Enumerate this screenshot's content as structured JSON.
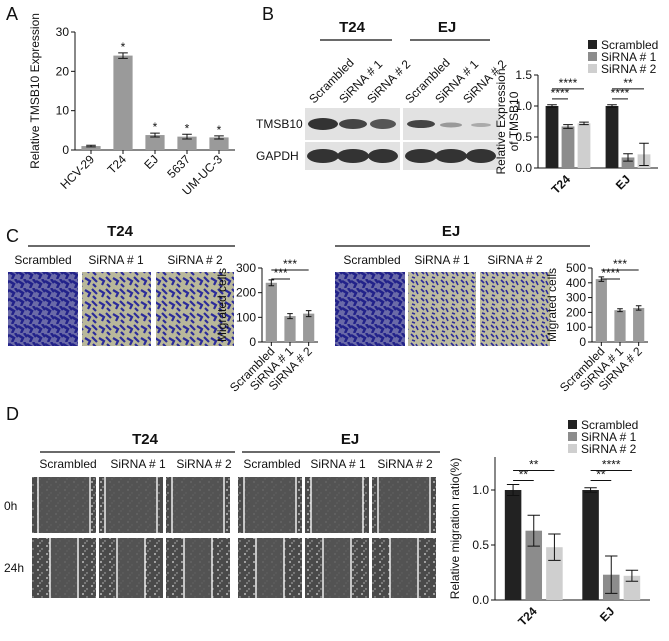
{
  "panels": {
    "labels": [
      "A",
      "B",
      "C",
      "D"
    ],
    "blot": {
      "groups": [
        "T24",
        "EJ"
      ],
      "lanes": [
        "Scrambled",
        "SiRNA # 1",
        "SiRNA # 2",
        "Scrambled",
        "SiRNA # 1",
        "SiRNA # 2"
      ],
      "rows": [
        "TMSB10",
        "GAPDH"
      ]
    },
    "transwell": {
      "groups": [
        "T24",
        "EJ"
      ],
      "lanes": [
        "Scrambled",
        "SiRNA # 1",
        "SiRNA # 2",
        "Scrambled",
        "SiRNA # 1",
        "SiRNA # 2"
      ]
    },
    "wound": {
      "groups": [
        "T24",
        "EJ"
      ],
      "lanes": [
        "Scrambled",
        "SiRNA # 1",
        "SiRNA # 2",
        "Scrambled",
        "SiRNA # 1",
        "SiRNA # 2"
      ],
      "times": [
        "0h",
        "24h"
      ]
    }
  },
  "chart_data": [
    {
      "type": "bar",
      "y_label": "Relative TMSB10 Expression",
      "categories": [
        "HCV-29",
        "T24",
        "EJ",
        "5637",
        "UM-UC-3"
      ],
      "values": [
        1,
        24,
        3.8,
        3.4,
        3.2
      ],
      "errors": [
        0.2,
        0.7,
        0.5,
        0.6,
        0.4
      ],
      "color": "#9a9a9a",
      "annotations": [
        "*",
        "*",
        "*",
        "*"
      ],
      "ylim": [
        0,
        30
      ],
      "yticks": [
        0,
        10,
        20,
        30
      ]
    },
    {
      "type": "grouped_bar",
      "y_label": "Relative Expression of TMSB10",
      "categories": [
        "T24",
        "EJ"
      ],
      "series": [
        {
          "name": "Scrambled",
          "color": "#222222",
          "values": [
            1.0,
            1.0
          ],
          "errors": [
            0.02,
            0.02
          ]
        },
        {
          "name": "SiRNA # 1",
          "color": "#8c8c8c",
          "values": [
            0.67,
            0.17
          ],
          "errors": [
            0.03,
            0.06
          ]
        },
        {
          "name": "SiRNA # 2",
          "color": "#cfcfcf",
          "values": [
            0.72,
            0.22
          ],
          "errors": [
            0.02,
            0.18
          ]
        }
      ],
      "significance": [
        "****",
        "****",
        "****",
        "**"
      ],
      "legend": "top-right",
      "ylim": [
        0,
        1.5
      ],
      "yticks": [
        {
          "value": 0,
          "label": "0.0"
        },
        0.5,
        {
          "value": 1,
          "label": "1.0"
        },
        1.5
      ]
    },
    {
      "type": "bar",
      "y_label": "Migrated cells",
      "categories": [
        "Scrambled",
        "SiRNA # 1",
        "SiRNA # 2"
      ],
      "values": [
        240,
        105,
        115
      ],
      "errors": [
        12,
        10,
        12
      ],
      "color": "#9a9a9a",
      "significance": [
        "***",
        "***"
      ],
      "ylim": [
        0,
        300
      ],
      "yticks": [
        0,
        100,
        200,
        300
      ]
    },
    {
      "type": "bar",
      "y_label": "Migrated cells",
      "categories": [
        "Scrambled",
        "SiRNA # 1",
        "SiRNA # 2"
      ],
      "values": [
        425,
        215,
        230
      ],
      "errors": [
        15,
        10,
        15
      ],
      "color": "#9a9a9a",
      "significance": [
        "****",
        "***"
      ],
      "ylim": [
        0,
        500
      ],
      "yticks": [
        0,
        100,
        200,
        300,
        400,
        500
      ]
    },
    {
      "type": "grouped_bar",
      "y_label": "Relative migration ratio(%)",
      "categories": [
        "T24",
        "EJ"
      ],
      "series": [
        {
          "name": "Scrambled",
          "color": "#222222",
          "values": [
            1.0,
            1.0
          ],
          "errors": [
            0.05,
            0.02
          ]
        },
        {
          "name": "SiRNA # 1",
          "color": "#8c8c8c",
          "values": [
            0.63,
            0.23
          ],
          "errors": [
            0.14,
            0.17
          ]
        },
        {
          "name": "SiRNA # 2",
          "color": "#cfcfcf",
          "values": [
            0.48,
            0.22
          ],
          "errors": [
            0.12,
            0.05
          ]
        }
      ],
      "significance": [
        "**",
        "**",
        "**",
        "****"
      ],
      "legend": "top-right",
      "ylim": [
        0,
        1.3
      ],
      "yticks": [
        {
          "value": 0,
          "label": "0.0"
        },
        0.5,
        {
          "value": 1,
          "label": "1.0"
        }
      ]
    }
  ]
}
